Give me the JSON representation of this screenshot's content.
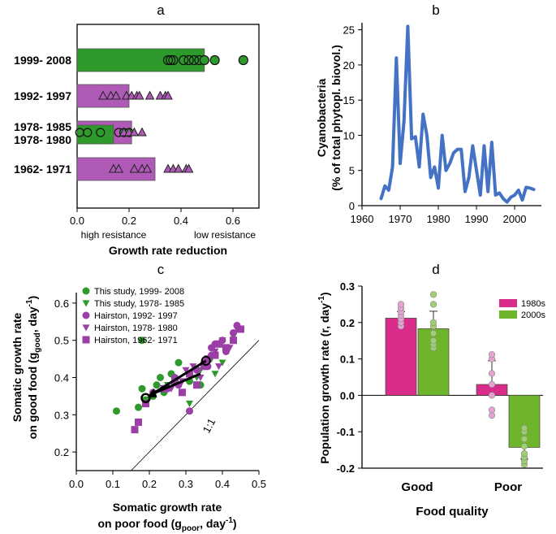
{
  "panel_labels": {
    "a": "a",
    "b": "b",
    "c": "c",
    "d": "d"
  },
  "chart_data": [
    {
      "id": "a",
      "type": "bar",
      "orientation": "horizontal",
      "xlabel": "Growth rate reduction",
      "xlim": [
        0,
        0.7
      ],
      "xticks": [
        "0.0",
        "0.2",
        "0.4",
        "0.6"
      ],
      "left_note": "high resistance",
      "right_note": "low resistance",
      "colors": {
        "green": "#2e9a2b",
        "purple": "#b05ab7",
        "greenText": "#2b8f28",
        "purpleText": "#8e2a92"
      },
      "groups": [
        {
          "label": "1999- 2008",
          "color": "green",
          "bar": 0.49,
          "marker": "circle",
          "points": [
            0.35,
            0.36,
            0.37,
            0.41,
            0.43,
            0.45,
            0.47,
            0.49,
            0.53,
            0.64
          ],
          "filled": [
            false,
            false,
            false,
            false,
            false,
            false,
            false,
            true,
            true,
            true
          ]
        },
        {
          "label": "1992- 1997",
          "color": "purple",
          "bar": 0.2,
          "marker": "triangle",
          "points": [
            0.1,
            0.13,
            0.15,
            0.19,
            0.21,
            0.23,
            0.24,
            0.28,
            0.32,
            0.34,
            0.35
          ],
          "filled": [
            true,
            true,
            true,
            true,
            true,
            true,
            true,
            true,
            true,
            true,
            true
          ]
        },
        {
          "label": "1978- 1985",
          "label2": "1978- 1980",
          "color": "green",
          "color2": "purple",
          "bar": 0.14,
          "bar2": 0.21,
          "marker": "mixed",
          "circles": [
            0.01,
            0.04,
            0.09,
            0.16,
            0.18,
            0.2
          ],
          "triangles": [
            0.18,
            0.2,
            0.22,
            0.25
          ]
        },
        {
          "label": "1962- 1971",
          "color": "purple",
          "bar": 0.3,
          "marker": "triangle",
          "points": [
            0.14,
            0.16,
            0.22,
            0.25,
            0.27,
            0.35,
            0.37,
            0.39,
            0.42,
            0.43
          ],
          "filled": [
            true,
            true,
            true,
            true,
            true,
            true,
            true,
            true,
            true,
            true
          ]
        }
      ]
    },
    {
      "id": "b",
      "type": "line",
      "ylabel1": "Cyanobacteria",
      "ylabel2": "(% of total phytopl. biovol.)",
      "xlim": [
        1960,
        2007
      ],
      "ylim": [
        0,
        26
      ],
      "xticks": [
        "1960",
        "1970",
        "1980",
        "1990",
        "2000"
      ],
      "yticks": [
        "0",
        "5",
        "10",
        "15",
        "20",
        "25"
      ],
      "color": "#4472c4",
      "x": [
        1965,
        1966,
        1967,
        1968,
        1969,
        1970,
        1971,
        1972,
        1973,
        1974,
        1975,
        1976,
        1977,
        1978,
        1979,
        1980,
        1981,
        1982,
        1983,
        1984,
        1985,
        1986,
        1987,
        1988,
        1989,
        1990,
        1991,
        1992,
        1993,
        1994,
        1995,
        1996,
        1997,
        1998,
        1999,
        2000,
        2001,
        2002,
        2003,
        2004,
        2005
      ],
      "y": [
        1.0,
        2.8,
        2.2,
        5.5,
        21.0,
        6.0,
        12.0,
        25.5,
        9.5,
        9.8,
        5.5,
        13.0,
        10.0,
        4.0,
        5.5,
        2.5,
        10.0,
        5.0,
        6.0,
        7.5,
        8.0,
        8.0,
        2.0,
        4.0,
        8.5,
        5.0,
        1.5,
        8.5,
        2.0,
        9.0,
        1.5,
        1.8,
        1.0,
        0.5,
        1.2,
        1.5,
        2.2,
        0.8,
        2.6,
        2.5,
        2.3
      ]
    },
    {
      "id": "c",
      "type": "scatter",
      "xlabel1": "Somatic growth rate",
      "xlabel2": "on poor food (g",
      "xlabel2_sub": "poor",
      "xlabel2_tail": ", day",
      "xlabel2_sup": "-1",
      "xlabel2_end": ")",
      "ylabel1": "Somatic growth rate",
      "ylabel2": "on good food (g",
      "ylabel2_sub": "good",
      "ylabel2_tail": ", day",
      "ylabel2_sup": "-1",
      "ylabel2_end": ")",
      "xlim": [
        0,
        0.5
      ],
      "ylim": [
        0.15,
        0.65
      ],
      "xticks": [
        "0.0",
        "0.1",
        "0.2",
        "0.3",
        "0.4",
        "0.5"
      ],
      "yticks": [
        "0.2",
        "0.3",
        "0.4",
        "0.5",
        "0.6"
      ],
      "identity_label": "1:1",
      "series": [
        {
          "name": "This study, 1999- 2008",
          "marker": "circle",
          "color": "#2e9a2b",
          "x": [
            0.11,
            0.17,
            0.18,
            0.19,
            0.21,
            0.22,
            0.23,
            0.24,
            0.26,
            0.28,
            0.18,
            0.31,
            0.33,
            0.34
          ],
          "y": [
            0.31,
            0.32,
            0.37,
            0.34,
            0.35,
            0.38,
            0.4,
            0.36,
            0.41,
            0.44,
            0.5,
            0.39,
            0.42,
            0.38
          ]
        },
        {
          "name": "This study, 1978- 1985",
          "marker": "tri-down",
          "color": "#2e9a2b",
          "x": [
            0.25,
            0.31,
            0.33,
            0.34,
            0.37,
            0.38,
            0.4,
            0.41,
            0.43
          ],
          "y": [
            0.38,
            0.33,
            0.4,
            0.42,
            0.45,
            0.41,
            0.44,
            0.47,
            0.51
          ]
        },
        {
          "name": "Hairston, 1992- 1997",
          "marker": "circle",
          "color": "#9b3fa7",
          "x": [
            0.21,
            0.25,
            0.27,
            0.28,
            0.31,
            0.33,
            0.35,
            0.36,
            0.37,
            0.38,
            0.4,
            0.41,
            0.43,
            0.44,
            0.37
          ],
          "y": [
            0.36,
            0.37,
            0.4,
            0.38,
            0.31,
            0.42,
            0.44,
            0.43,
            0.48,
            0.49,
            0.5,
            0.47,
            0.52,
            0.54,
            0.46
          ]
        },
        {
          "name": "Hairston, 1978- 1980",
          "marker": "tri-down",
          "color": "#9b3fa7",
          "x": [
            0.26,
            0.29,
            0.3,
            0.32,
            0.34,
            0.36,
            0.38,
            0.39,
            0.4,
            0.42,
            0.44
          ],
          "y": [
            0.37,
            0.39,
            0.42,
            0.43,
            0.4,
            0.44,
            0.47,
            0.43,
            0.5,
            0.48,
            0.53
          ]
        },
        {
          "name": "Hairston, 1962- 1971",
          "marker": "square",
          "color": "#9b3fa7",
          "x": [
            0.17,
            0.19,
            0.16,
            0.24,
            0.27,
            0.29,
            0.31,
            0.33,
            0.35,
            0.36,
            0.38,
            0.39,
            0.41,
            0.43,
            0.45
          ],
          "y": [
            0.28,
            0.33,
            0.26,
            0.37,
            0.39,
            0.36,
            0.41,
            0.38,
            0.43,
            0.45,
            0.46,
            0.49,
            0.48,
            0.5,
            0.53
          ]
        }
      ],
      "arrow": {
        "from": [
          0.355,
          0.445
        ],
        "to": [
          0.19,
          0.345
        ],
        "mid": [
          0.34,
          0.41
        ]
      }
    },
    {
      "id": "d",
      "type": "bar",
      "xlabel": "Food quality",
      "ylabel": "Population growth rate (r, day",
      "ylabel_sup": "-1",
      "ylabel_end": ")",
      "ylim": [
        -0.2,
        0.3
      ],
      "yticks": [
        "-0.2",
        "-0.1",
        "0.0",
        "0.1",
        "0.2",
        "0.3"
      ],
      "categories": [
        "Good",
        "Poor"
      ],
      "series": [
        {
          "name": "1980s",
          "color": "#d92b8a",
          "light": "#e4a3d0",
          "values": [
            0.212,
            0.03
          ],
          "errors": [
            0.018,
            0.065
          ],
          "points": [
            [
              0.19,
              0.2,
              0.21,
              0.22,
              0.23,
              0.24,
              0.25
            ],
            [
              -0.055,
              -0.04,
              0.0,
              0.03,
              0.06,
              0.1,
              0.112
            ]
          ]
        },
        {
          "name": "2000s",
          "color": "#6fb52c",
          "light": "#9fd070",
          "values": [
            0.183,
            -0.143
          ],
          "errors": [
            0.048,
            0.032
          ],
          "points": [
            [
              0.13,
              0.14,
              0.15,
              0.17,
              0.19,
              0.2,
              0.25,
              0.277
            ],
            [
              -0.19,
              -0.18,
              -0.17,
              -0.16,
              -0.14,
              -0.12,
              -0.1,
              -0.09
            ]
          ]
        }
      ]
    }
  ]
}
